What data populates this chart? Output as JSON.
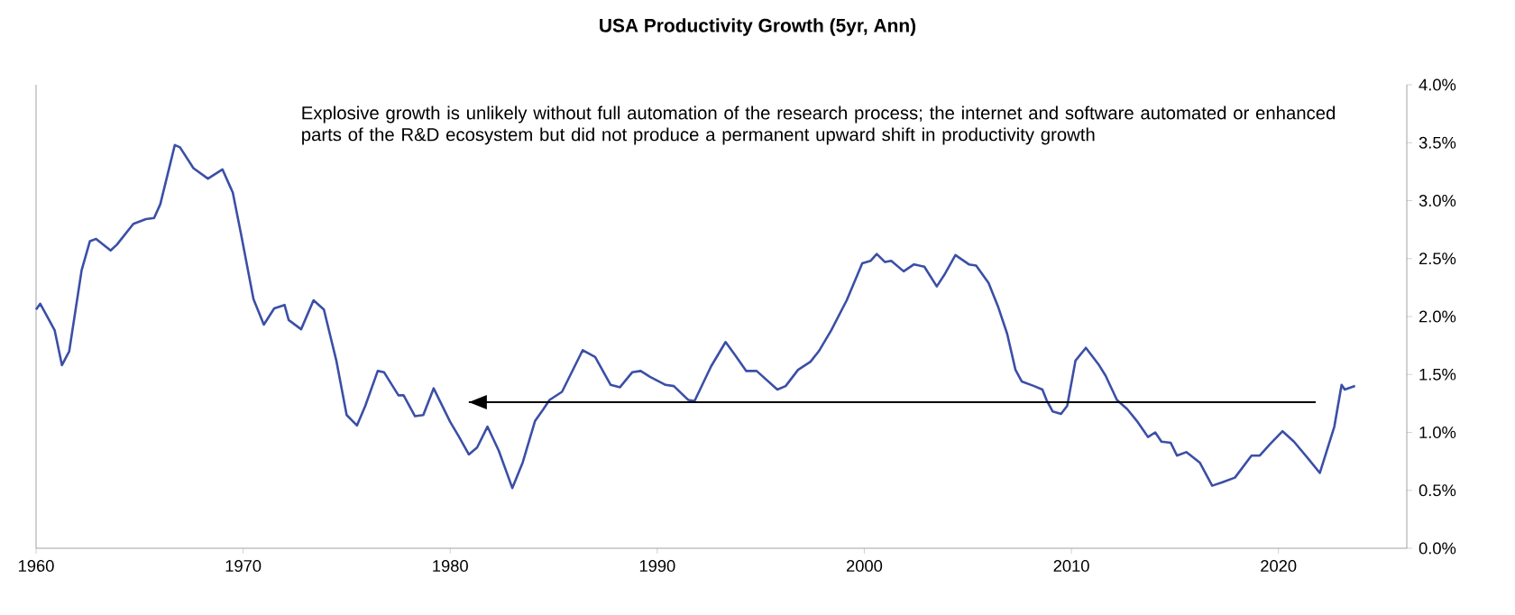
{
  "chart_data": {
    "type": "line",
    "title": "USA Productivity Growth (5yr, Ann)",
    "annotations": [
      "Explosive growth is unlikely without full automation of the research process; the internet and software automated or enhanced parts of the R&D ecosystem but did not produce a permanent upward shift in productivity growth"
    ],
    "xlim": [
      1960,
      2026.2
    ],
    "xticks": [
      1960,
      1970,
      1980,
      1990,
      2000,
      2010,
      2020
    ],
    "ylim": [
      0,
      4
    ],
    "yticks": [
      {
        "value": 0,
        "label": "0.0%"
      },
      {
        "value": 0.5,
        "label": "0.5%"
      },
      {
        "value": 1,
        "label": "1.0%"
      },
      {
        "value": 1.5,
        "label": "1.5%"
      },
      {
        "value": 2,
        "label": "2.0%"
      },
      {
        "value": 2.5,
        "label": "2.5%"
      },
      {
        "value": 3,
        "label": "3.0%"
      },
      {
        "value": 3.5,
        "label": "3.5%"
      },
      {
        "value": 4,
        "label": "4.0%"
      }
    ],
    "grid": false,
    "legend": false,
    "series": [
      {
        "color": "#3b4fa6",
        "x": [
          1960.0,
          1960.2,
          1960.6,
          1960.9,
          1961.25,
          1961.6,
          1962.2,
          1962.6,
          1962.9,
          1963.6,
          1963.9,
          1964.7,
          1965.3,
          1965.7,
          1966.0,
          1966.7,
          1966.95,
          1967.6,
          1968.3,
          1969.0,
          1969.5,
          1969.9,
          1970.5,
          1971.0,
          1971.5,
          1972.0,
          1972.2,
          1972.8,
          1973.4,
          1973.9,
          1974.5,
          1975.0,
          1975.5,
          1975.9,
          1976.5,
          1976.8,
          1977.5,
          1977.75,
          1978.3,
          1978.7,
          1979.2,
          1980.0,
          1980.4,
          1980.9,
          1981.3,
          1981.8,
          1982.35,
          1983.0,
          1983.5,
          1984.1,
          1984.5,
          1984.8,
          1985.4,
          1986.4,
          1987.0,
          1987.75,
          1988.2,
          1988.8,
          1989.2,
          1989.65,
          1990.4,
          1990.8,
          1991.5,
          1991.8,
          1992.6,
          1993.3,
          1993.75,
          1994.3,
          1994.8,
          1995.8,
          1996.2,
          1996.8,
          1997.4,
          1997.8,
          1998.4,
          1999.15,
          1999.9,
          2000.3,
          2000.6,
          2001.0,
          2001.3,
          2001.9,
          2002.4,
          2002.9,
          2003.5,
          2003.9,
          2004.4,
          2005.05,
          2005.4,
          2006.0,
          2006.45,
          2006.9,
          2007.3,
          2007.6,
          2008.2,
          2008.6,
          2008.8,
          2009.1,
          2009.5,
          2009.8,
          2010.2,
          2010.7,
          2011.3,
          2011.65,
          2012.2,
          2012.7,
          2013.2,
          2013.7,
          2014.05,
          2014.35,
          2014.8,
          2015.1,
          2015.55,
          2016.2,
          2016.8,
          2017.3,
          2017.9,
          2018.7,
          2019.1,
          2019.6,
          2020.2,
          2020.75,
          2021.5,
          2022.0,
          2022.7,
          2023.05,
          2023.2,
          2023.7
        ],
        "values": [
          2.06,
          2.11,
          1.98,
          1.88,
          1.58,
          1.7,
          2.4,
          2.65,
          2.67,
          2.57,
          2.62,
          2.8,
          2.84,
          2.85,
          2.97,
          3.48,
          3.46,
          3.28,
          3.19,
          3.27,
          3.07,
          2.71,
          2.15,
          1.93,
          2.07,
          2.1,
          1.97,
          1.89,
          2.14,
          2.06,
          1.62,
          1.15,
          1.06,
          1.23,
          1.53,
          1.52,
          1.32,
          1.32,
          1.14,
          1.15,
          1.38,
          1.09,
          0.97,
          0.81,
          0.87,
          1.05,
          0.84,
          0.52,
          0.74,
          1.1,
          1.2,
          1.28,
          1.35,
          1.71,
          1.65,
          1.41,
          1.39,
          1.52,
          1.53,
          1.48,
          1.41,
          1.4,
          1.28,
          1.27,
          1.57,
          1.78,
          1.67,
          1.53,
          1.53,
          1.37,
          1.4,
          1.54,
          1.61,
          1.7,
          1.88,
          2.14,
          2.46,
          2.48,
          2.54,
          2.47,
          2.48,
          2.39,
          2.45,
          2.43,
          2.26,
          2.37,
          2.53,
          2.45,
          2.44,
          2.29,
          2.09,
          1.85,
          1.54,
          1.44,
          1.4,
          1.37,
          1.28,
          1.18,
          1.16,
          1.23,
          1.62,
          1.73,
          1.59,
          1.49,
          1.28,
          1.2,
          1.09,
          0.96,
          1.0,
          0.92,
          0.91,
          0.8,
          0.83,
          0.74,
          0.54,
          0.57,
          0.61,
          0.8,
          0.8,
          0.9,
          1.01,
          0.92,
          0.76,
          0.65,
          1.05,
          1.41,
          1.37,
          1.4
        ]
      },
      {
        "color": "#000000",
        "x": [
          2021.8,
          1980.9
        ],
        "values": [
          1.26,
          1.26
        ]
      }
    ]
  }
}
